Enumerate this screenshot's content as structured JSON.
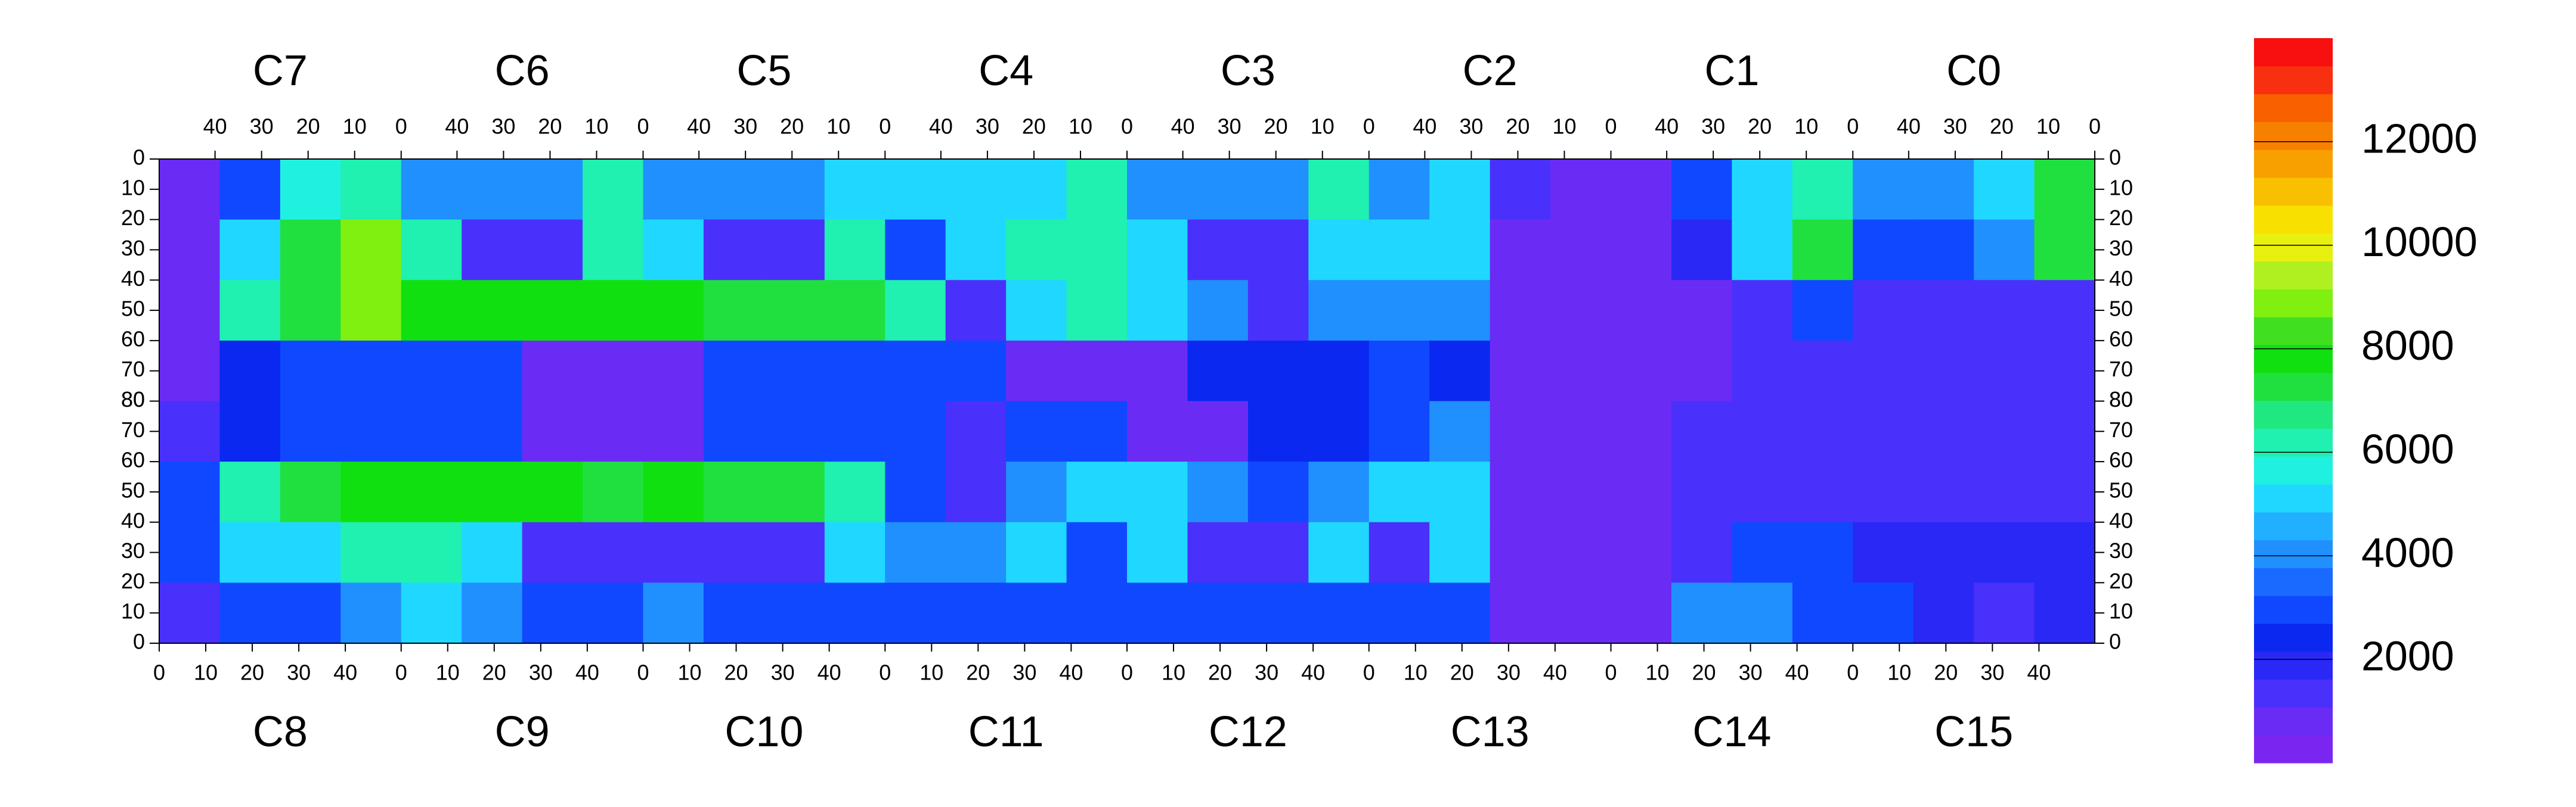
{
  "chart_data": {
    "type": "heatmap",
    "top_chips": [
      "C7",
      "C6",
      "C5",
      "C4",
      "C3",
      "C2",
      "C1",
      "C0"
    ],
    "bottom_chips": [
      "C8",
      "C9",
      "C10",
      "C11",
      "C12",
      "C13",
      "C14",
      "C15"
    ],
    "xlim": [
      0,
      52
    ],
    "xticks": [
      0,
      10,
      20,
      30,
      40
    ],
    "ylim": [
      0,
      80
    ],
    "yticks": [
      0,
      10,
      20,
      30,
      40,
      50,
      60,
      70,
      80
    ],
    "zlim": [
      0,
      14000
    ],
    "zticks": [
      2000,
      4000,
      6000,
      8000,
      10000,
      12000
    ],
    "palette": [
      "#7b26f0",
      "#6a2cf5",
      "#4a30fb",
      "#2a28f5",
      "#0a28f0",
      "#1048ff",
      "#1a6aff",
      "#2090ff",
      "#20b0ff",
      "#20d8ff",
      "#20f0e0",
      "#20f0b0",
      "#20e880",
      "#20e040",
      "#10e010",
      "#40e020",
      "#80f010",
      "#b0f020",
      "#e8f010",
      "#f8e000",
      "#f8c000",
      "#f8a000",
      "#f88000",
      "#f86000",
      "#f83010",
      "#f81010"
    ],
    "top_z": [
      [
        1000,
        3000,
        5500,
        6000,
        4000,
        4000,
        4000,
        6000,
        4000,
        4000,
        4000,
        5000,
        5000,
        5000,
        5000,
        6000,
        4000,
        4000,
        4000,
        6000,
        4000,
        5000,
        1500,
        1000,
        1000,
        3000,
        5000,
        6000,
        4000,
        4000,
        5000,
        7000
      ],
      [
        1000,
        5000,
        7000,
        9000,
        6000,
        1500,
        1500,
        6000,
        5000,
        1500,
        1500,
        6000,
        3000,
        5000,
        6000,
        6000,
        5000,
        1500,
        1500,
        5000,
        5000,
        5000,
        1000,
        1000,
        1000,
        2000,
        5000,
        7000,
        3000,
        3000,
        4000,
        7000
      ],
      [
        1000,
        6000,
        7500,
        9000,
        8000,
        8000,
        8000,
        8000,
        8000,
        7000,
        7000,
        7000,
        6000,
        1500,
        5000,
        6000,
        5000,
        4000,
        1500,
        4000,
        4000,
        4000,
        1000,
        1000,
        1000,
        1000,
        1500,
        3000,
        1500,
        1500,
        1500,
        1500
      ],
      [
        1000,
        2500,
        3000,
        3000,
        3000,
        3000,
        1000,
        1000,
        1000,
        3000,
        3000,
        3000,
        3000,
        3000,
        1000,
        1000,
        1000,
        2500,
        2500,
        2500,
        3000,
        2500,
        1000,
        1000,
        1000,
        1000,
        1500,
        1500,
        1500,
        1500,
        1500,
        1500
      ]
    ],
    "bottom_z": [
      [
        1500,
        2500,
        3000,
        3000,
        3000,
        3000,
        1000,
        1000,
        1000,
        3000,
        3000,
        3000,
        3000,
        1500,
        3000,
        3000,
        1000,
        1000,
        2500,
        2500,
        3000,
        4000,
        1000,
        1000,
        1000,
        1500,
        1500,
        1500,
        1500,
        1500,
        1500,
        1500
      ],
      [
        3000,
        6000,
        7000,
        8000,
        8000,
        8000,
        8000,
        7000,
        8000,
        7000,
        7000,
        6000,
        3000,
        1500,
        4000,
        5000,
        5000,
        4000,
        3000,
        4000,
        5000,
        5000,
        1000,
        1000,
        1000,
        1500,
        1500,
        1500,
        1500,
        1500,
        1500,
        1500
      ],
      [
        3000,
        5000,
        5000,
        6000,
        6000,
        5000,
        1500,
        1500,
        1500,
        1500,
        1500,
        5000,
        4000,
        4000,
        5000,
        3000,
        5000,
        1500,
        1500,
        5000,
        1500,
        5000,
        1000,
        1000,
        1000,
        1500,
        3000,
        3000,
        2000,
        2000,
        2000,
        2000
      ],
      [
        1500,
        3000,
        3000,
        4000,
        5000,
        4000,
        3000,
        3000,
        4000,
        3000,
        3000,
        3000,
        3000,
        3000,
        3000,
        3000,
        3000,
        3000,
        3000,
        3000,
        3000,
        3000,
        1000,
        1000,
        1000,
        4000,
        4000,
        3000,
        3000,
        2000,
        1500,
        2000
      ]
    ]
  }
}
